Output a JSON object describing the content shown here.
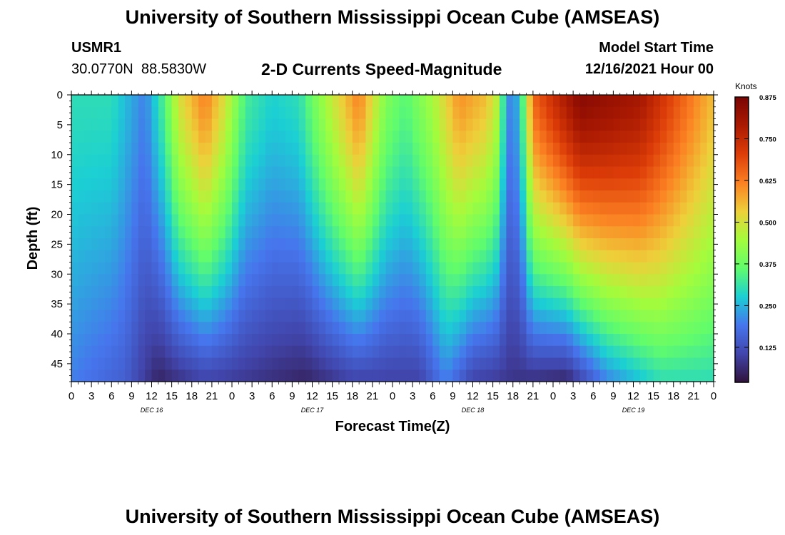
{
  "header": {
    "title": "University of Southern Mississippi Ocean Cube (AMSEAS)",
    "station_id": "USMR1",
    "coordinates": "30.0770N  88.5830W",
    "plot_title": "2-D Currents Speed-Magnitude",
    "model_start_label": "Model Start Time",
    "model_start_value": "12/16/2021 Hour 00"
  },
  "footer": {
    "title": "University of Southern Mississippi Ocean Cube (AMSEAS)"
  },
  "chart_data": {
    "type": "heatmap",
    "title": "2-D Currents Speed-Magnitude",
    "xlabel": "Forecast Time(Z)",
    "ylabel": "Depth (ft)",
    "x_tick_labels": [
      "0",
      "3",
      "6",
      "9",
      "12",
      "15",
      "18",
      "21",
      "0",
      "3",
      "6",
      "9",
      "12",
      "15",
      "18",
      "21",
      "0",
      "3",
      "6",
      "9",
      "12",
      "15",
      "18",
      "21",
      "0",
      "3",
      "6",
      "9",
      "12",
      "15",
      "18",
      "21",
      "0"
    ],
    "date_labels": [
      "DEC 16",
      "DEC 17",
      "DEC 18",
      "DEC 19"
    ],
    "y_tick_labels": [
      "0",
      "5",
      "10",
      "15",
      "20",
      "25",
      "30",
      "35",
      "40",
      "45"
    ],
    "y_ticks": [
      0,
      5,
      10,
      15,
      20,
      25,
      30,
      35,
      40,
      45
    ],
    "ylim": [
      0,
      48
    ],
    "xlim_hours": [
      0,
      96
    ],
    "colorbar": {
      "label": "Knots",
      "ticks": [
        "0.875",
        "0.750",
        "0.625",
        "0.500",
        "0.375",
        "0.250",
        "0.125"
      ],
      "tick_values": [
        0.875,
        0.75,
        0.625,
        0.5,
        0.375,
        0.25,
        0.125
      ],
      "range": [
        0.02,
        0.875
      ]
    },
    "surface_speed_knots": [
      {
        "hour": 0,
        "value": 0.3
      },
      {
        "hour": 6,
        "value": 0.3
      },
      {
        "hour": 10,
        "value": 0.22
      },
      {
        "hour": 11,
        "value": 0.2
      },
      {
        "hour": 14,
        "value": 0.35
      },
      {
        "hour": 16,
        "value": 0.5
      },
      {
        "hour": 20,
        "value": 0.62
      },
      {
        "hour": 23,
        "value": 0.5
      },
      {
        "hour": 26,
        "value": 0.33
      },
      {
        "hour": 30,
        "value": 0.28
      },
      {
        "hour": 34,
        "value": 0.3
      },
      {
        "hour": 38,
        "value": 0.45
      },
      {
        "hour": 43,
        "value": 0.62
      },
      {
        "hour": 47,
        "value": 0.4
      },
      {
        "hour": 50,
        "value": 0.35
      },
      {
        "hour": 54,
        "value": 0.45
      },
      {
        "hour": 58,
        "value": 0.6
      },
      {
        "hour": 62,
        "value": 0.55
      },
      {
        "hour": 64,
        "value": 0.45
      },
      {
        "hour": 65,
        "value": 0.2
      },
      {
        "hour": 67,
        "value": 0.25
      },
      {
        "hour": 69,
        "value": 0.65
      },
      {
        "hour": 76,
        "value": 0.85
      },
      {
        "hour": 85,
        "value": 0.8
      },
      {
        "hour": 96,
        "value": 0.55
      }
    ],
    "bottom_speed_knots": [
      {
        "hour": 0,
        "value": 0.2
      },
      {
        "hour": 8,
        "value": 0.15
      },
      {
        "hour": 13,
        "value": 0.05
      },
      {
        "hour": 20,
        "value": 0.1
      },
      {
        "hour": 27,
        "value": 0.08
      },
      {
        "hour": 35,
        "value": 0.05
      },
      {
        "hour": 42,
        "value": 0.1
      },
      {
        "hour": 52,
        "value": 0.1
      },
      {
        "hour": 56,
        "value": 0.2
      },
      {
        "hour": 60,
        "value": 0.1
      },
      {
        "hour": 74,
        "value": 0.05
      },
      {
        "hour": 80,
        "value": 0.2
      },
      {
        "hour": 88,
        "value": 0.3
      },
      {
        "hour": 96,
        "value": 0.3
      }
    ]
  }
}
